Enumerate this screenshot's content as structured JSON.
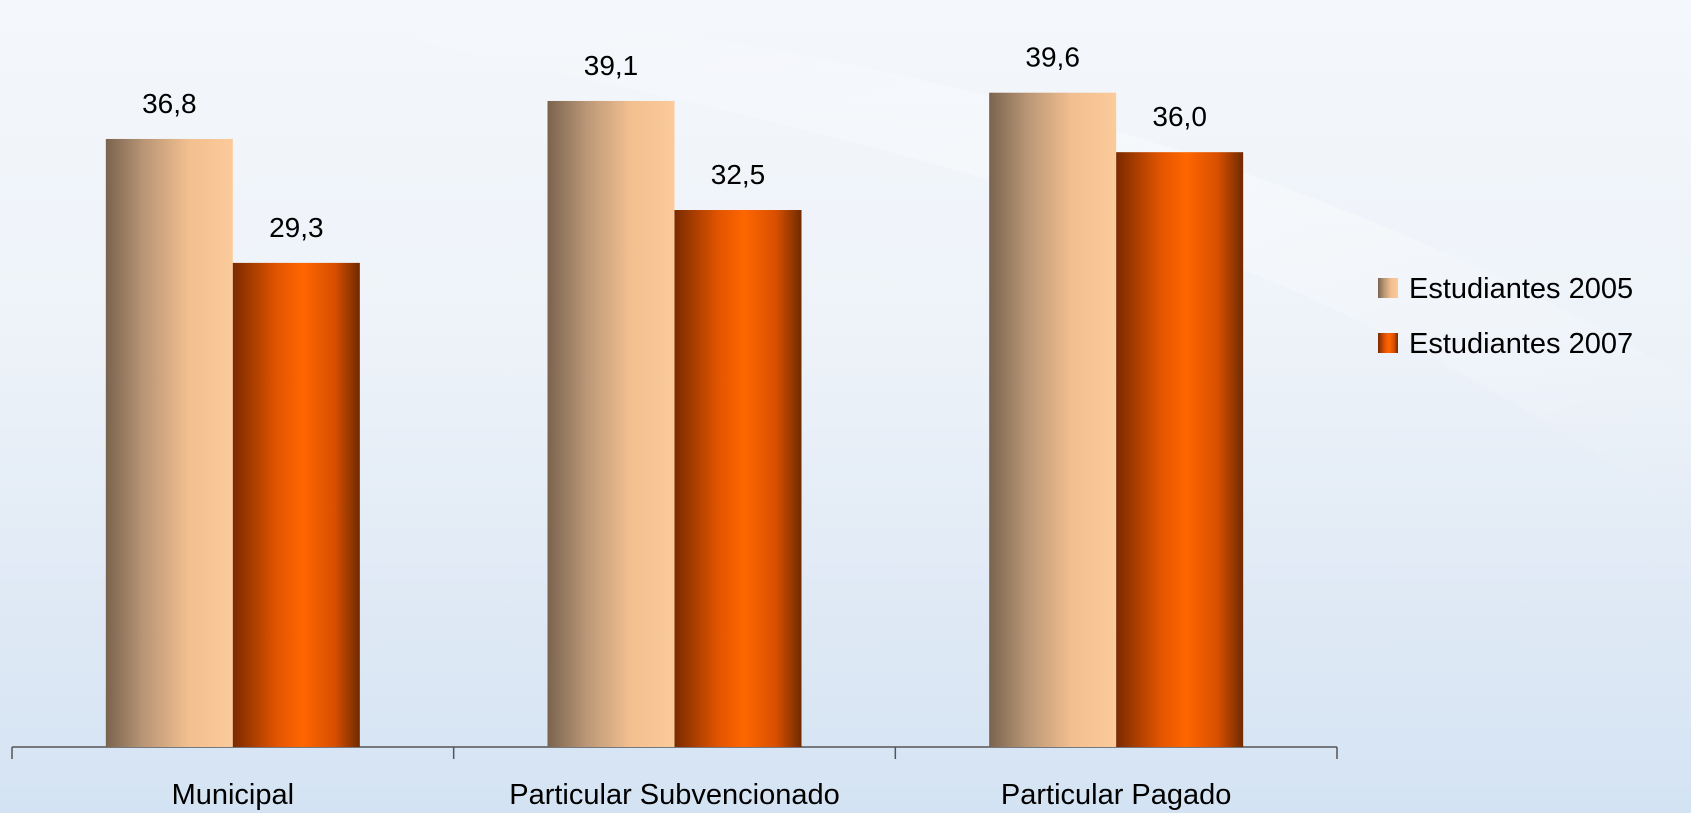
{
  "chart_data": {
    "type": "bar",
    "title": "",
    "xlabel": "",
    "ylabel": "",
    "categories": [
      "Municipal",
      "Particular Subvencionado",
      "Particular Pagado"
    ],
    "series": [
      {
        "name": "Estudiantes 2005",
        "values": [
          36.8,
          39.1,
          39.6
        ],
        "value_labels": [
          "36,8",
          "39,1",
          "39,6"
        ],
        "color": "#f6c090"
      },
      {
        "name": "Estudiantes 2007",
        "values": [
          29.3,
          32.5,
          36.0
        ],
        "value_labels": [
          "29,3",
          "32,5",
          "36,0"
        ],
        "color": "#ff6600"
      }
    ],
    "ylim": [
      0,
      44
    ],
    "grid": false,
    "legend_position": "right"
  }
}
